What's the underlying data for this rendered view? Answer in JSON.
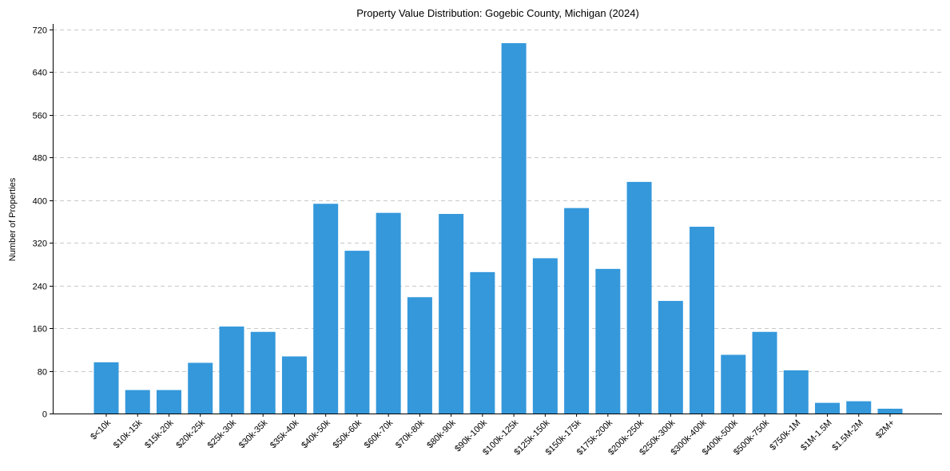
{
  "chart_data": {
    "type": "bar",
    "title": "Property Value Distribution: Gogebic County, Michigan (2024)",
    "xlabel": "",
    "ylabel": "Number of Properties",
    "ylim": [
      0,
      730
    ],
    "yticks": [
      0,
      80,
      160,
      240,
      320,
      400,
      480,
      560,
      640,
      720
    ],
    "grid": "horizontal dashed",
    "bar_color": "#3498db",
    "categories": [
      "$<10k",
      "$10k-15k",
      "$15k-20k",
      "$20k-25k",
      "$25k-30k",
      "$30k-35k",
      "$35k-40k",
      "$40k-50k",
      "$50k-60k",
      "$60k-70k",
      "$70k-80k",
      "$80k-90k",
      "$90k-100k",
      "$100k-125k",
      "$125k-150k",
      "$150k-175k",
      "$175k-200k",
      "$200k-250k",
      "$250k-300k",
      "$300k-400k",
      "$400k-500k",
      "$500k-750k",
      "$750k-1M",
      "$1M-1.5M",
      "$1.5M-2M",
      "$2M+"
    ],
    "values": [
      96,
      44,
      44,
      95,
      163,
      153,
      107,
      393,
      305,
      376,
      218,
      374,
      265,
      694,
      291,
      385,
      271,
      434,
      211,
      350,
      110,
      153,
      81,
      20,
      23,
      9
    ]
  }
}
